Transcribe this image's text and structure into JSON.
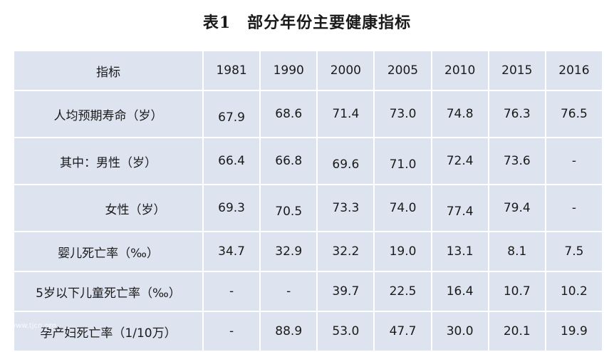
{
  "title": "表1　部分年份主要健康指标",
  "table": {
    "header": {
      "label": "指标",
      "years": [
        "1981",
        "1990",
        "2000",
        "2005",
        "2010",
        "2015",
        "2016"
      ]
    },
    "rows": [
      {
        "label": "人均预期寿命（岁）",
        "indent": false,
        "values": [
          "67.9",
          "68.6",
          "71.4",
          "73.0",
          "74.8",
          "76.3",
          "76.5"
        ]
      },
      {
        "label": "其中：男性（岁）",
        "indent": false,
        "values": [
          "66.4",
          "66.8",
          "69.6",
          "71.0",
          "72.4",
          "73.6",
          "-"
        ]
      },
      {
        "label": "女性（岁）",
        "indent": true,
        "values": [
          "69.3",
          "70.5",
          "73.3",
          "74.0",
          "77.4",
          "79.4",
          "-"
        ]
      },
      {
        "label": "婴儿死亡率（‰）",
        "indent": false,
        "values": [
          "34.7",
          "32.9",
          "32.2",
          "19.0",
          "13.1",
          "8.1",
          "7.5"
        ]
      },
      {
        "label": "5岁以下儿童死亡率（‰）",
        "indent": false,
        "values": [
          "-",
          "-",
          "39.7",
          "22.5",
          "16.4",
          "10.7",
          "10.2"
        ]
      },
      {
        "label": "孕产妇死亡率（1/10万）",
        "indent": false,
        "values": [
          "-",
          "88.9",
          "53.0",
          "47.7",
          "30.0",
          "20.1",
          "19.9"
        ]
      }
    ]
  },
  "watermark": "www.tjcn.org"
}
